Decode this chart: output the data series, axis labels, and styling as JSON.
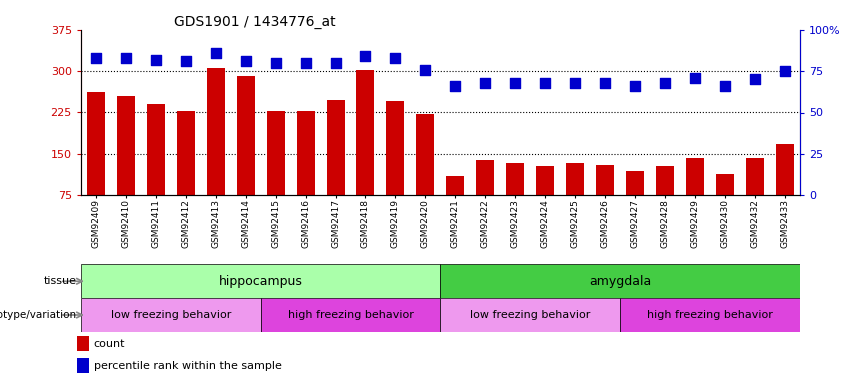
{
  "title": "GDS1901 / 1434776_at",
  "samples": [
    "GSM92409",
    "GSM92410",
    "GSM92411",
    "GSM92412",
    "GSM92413",
    "GSM92414",
    "GSM92415",
    "GSM92416",
    "GSM92417",
    "GSM92418",
    "GSM92419",
    "GSM92420",
    "GSM92421",
    "GSM92422",
    "GSM92423",
    "GSM92424",
    "GSM92425",
    "GSM92426",
    "GSM92427",
    "GSM92428",
    "GSM92429",
    "GSM92430",
    "GSM92432",
    "GSM92433"
  ],
  "counts": [
    262,
    255,
    240,
    228,
    305,
    292,
    228,
    228,
    248,
    303,
    246,
    222,
    110,
    138,
    133,
    128,
    133,
    130,
    118,
    128,
    142,
    113,
    143,
    168
  ],
  "percentile_ranks": [
    83,
    83,
    82,
    81,
    86,
    81,
    80,
    80,
    80,
    84,
    83,
    76,
    66,
    68,
    68,
    68,
    68,
    68,
    66,
    68,
    71,
    66,
    70,
    75
  ],
  "ymin": 75,
  "ymax": 375,
  "yticks": [
    75,
    150,
    225,
    300,
    375
  ],
  "y2min": 0,
  "y2max": 100,
  "y2ticks": [
    0,
    25,
    50,
    75,
    100
  ],
  "bar_color": "#cc0000",
  "dot_color": "#0000cc",
  "tissue_hippocampus_color": "#aaffaa",
  "tissue_amygdala_color": "#44cc44",
  "genotype_low_color": "#ee99ee",
  "genotype_high_color": "#dd44dd",
  "grid_lines": [
    150,
    225,
    300
  ],
  "dot_size": 45,
  "bar_width": 0.6,
  "tissue_label": "tissue",
  "genotype_label": "genotype/variation",
  "hippo_label": "hippocampus",
  "amyg_label": "amygdala",
  "low_freeze_label": "low freezing behavior",
  "high_freeze_label": "high freezing behavior",
  "legend_count": "count",
  "legend_pct": "percentile rank within the sample"
}
